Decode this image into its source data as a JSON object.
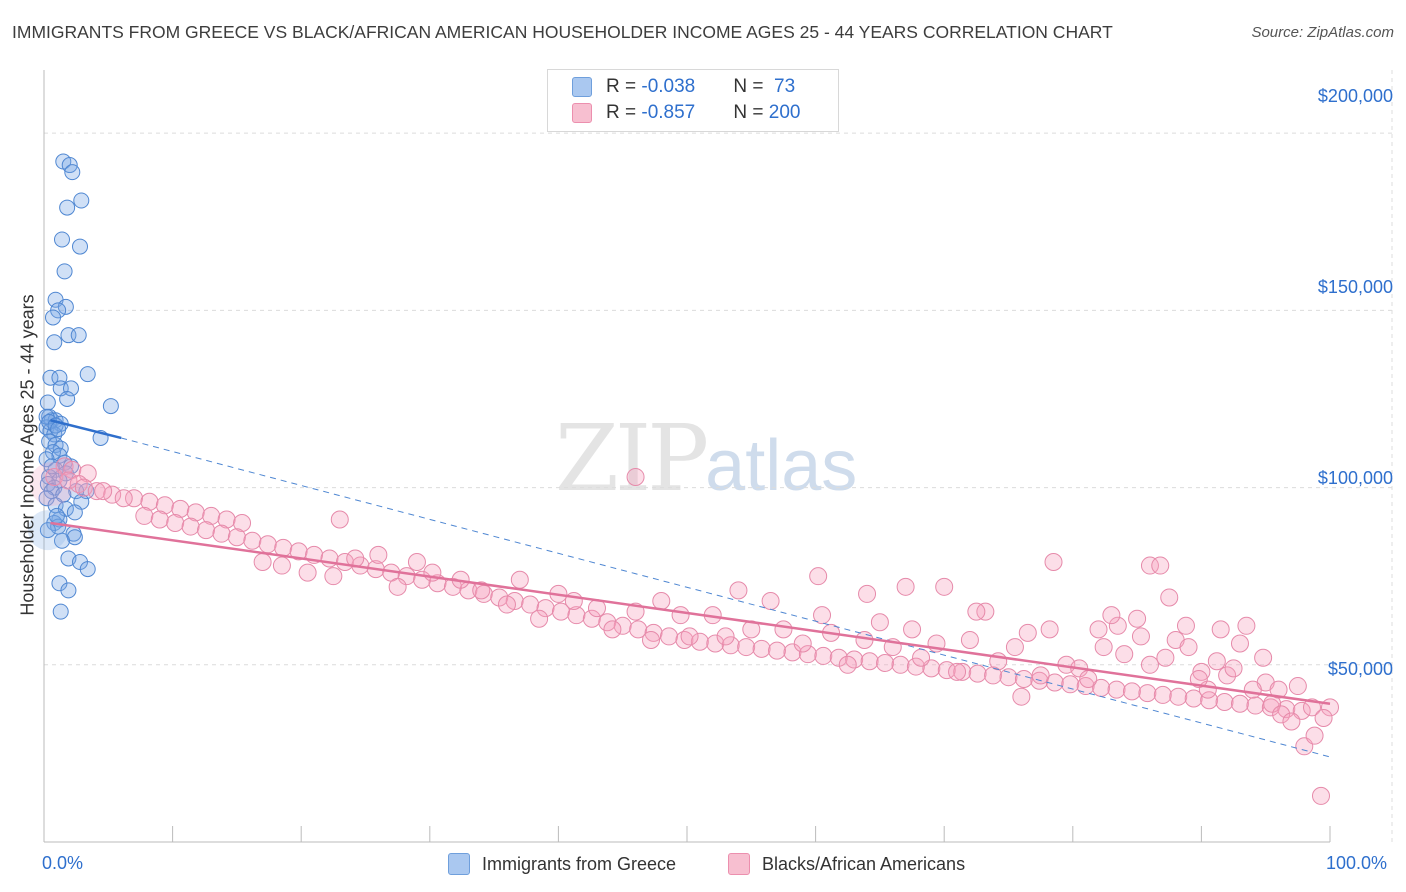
{
  "title": "IMMIGRANTS FROM GREECE VS BLACK/AFRICAN AMERICAN HOUSEHOLDER INCOME AGES 25 - 44 YEARS CORRELATION CHART",
  "source": "Source: ZipAtlas.com",
  "watermark": {
    "zip": "ZIP",
    "atlas": "atlas"
  },
  "legend": {
    "rows": [
      {
        "r_label": "R = ",
        "r_value": "-0.038",
        "n_label": "N = ",
        "n_value": " 73",
        "color": "#aac8f0",
        "border": "#6f9fdc"
      },
      {
        "r_label": "R = ",
        "r_value": "-0.857",
        "n_label": "N = ",
        "n_value": "200",
        "color": "#f7bfd0",
        "border": "#ec8fae"
      }
    ]
  },
  "bottom_legend": [
    {
      "label": "Immigrants from Greece",
      "color": "#aac8f0",
      "border": "#6f9fdc"
    },
    {
      "label": "Blacks/African Americans",
      "color": "#f7bfd0",
      "border": "#ec8fae"
    }
  ],
  "chart_data": {
    "type": "scatter",
    "title": "IMMIGRANTS FROM GREECE VS BLACK/AFRICAN AMERICAN HOUSEHOLDER INCOME AGES 25 - 44 YEARS CORRELATION CHART",
    "xlabel": "",
    "ylabel": "Householder Income Ages 25 - 44 years",
    "xlim": [
      0,
      100
    ],
    "ylim": [
      0,
      215000
    ],
    "x_tick_labels": [
      "0.0%",
      "100.0%"
    ],
    "y_ticks": [
      50000,
      100000,
      150000,
      200000
    ],
    "y_tick_labels": [
      "$50,000",
      "$100,000",
      "$150,000",
      "$200,000"
    ],
    "grid": true,
    "legend_position": "top-center",
    "series": [
      {
        "name": "Immigrants from Greece",
        "color": "#6f9fdc",
        "points": [
          [
            1.5,
            192000
          ],
          [
            2.0,
            191000
          ],
          [
            2.2,
            189000
          ],
          [
            2.9,
            181000
          ],
          [
            1.8,
            179000
          ],
          [
            1.4,
            170000
          ],
          [
            2.8,
            168000
          ],
          [
            1.6,
            161000
          ],
          [
            0.9,
            153000
          ],
          [
            1.7,
            151000
          ],
          [
            1.1,
            150000
          ],
          [
            0.7,
            148000
          ],
          [
            1.9,
            143000
          ],
          [
            2.7,
            143000
          ],
          [
            0.8,
            141000
          ],
          [
            3.4,
            132000
          ],
          [
            0.5,
            131000
          ],
          [
            1.2,
            131000
          ],
          [
            1.3,
            128000
          ],
          [
            2.1,
            128000
          ],
          [
            1.8,
            125000
          ],
          [
            0.3,
            124000
          ],
          [
            5.2,
            123000
          ],
          [
            0.4,
            120000
          ],
          [
            0.6,
            119000
          ],
          [
            0.9,
            119000
          ],
          [
            1.3,
            118000
          ],
          [
            0.2,
            117000
          ],
          [
            0.5,
            116000
          ],
          [
            0.8,
            115000
          ],
          [
            4.4,
            114000
          ],
          [
            0.4,
            113000
          ],
          [
            0.9,
            112000
          ],
          [
            1.3,
            111000
          ],
          [
            0.7,
            110000
          ],
          [
            1.2,
            109000
          ],
          [
            0.2,
            108000
          ],
          [
            1.6,
            107000
          ],
          [
            2.1,
            106000
          ],
          [
            0.9,
            105000
          ],
          [
            1.7,
            104000
          ],
          [
            0.4,
            103000
          ],
          [
            1.2,
            102000
          ],
          [
            0.3,
            101000
          ],
          [
            0.8,
            100000
          ],
          [
            3.3,
            99000
          ],
          [
            2.5,
            99000
          ],
          [
            0.6,
            99000
          ],
          [
            1.5,
            98000
          ],
          [
            0.2,
            97000
          ],
          [
            2.9,
            96000
          ],
          [
            0.9,
            95000
          ],
          [
            1.7,
            94000
          ],
          [
            2.4,
            93000
          ],
          [
            1.2,
            91000
          ],
          [
            0.8,
            90000
          ],
          [
            1.1,
            89000
          ],
          [
            0.3,
            88000
          ],
          [
            2.3,
            87000
          ],
          [
            2.4,
            86000
          ],
          [
            1.4,
            85000
          ],
          [
            1.9,
            80000
          ],
          [
            2.8,
            79000
          ],
          [
            3.4,
            77000
          ],
          [
            1.2,
            73000
          ],
          [
            1.9,
            71000
          ],
          [
            1.3,
            65000
          ],
          [
            0.2,
            120000
          ],
          [
            0.4,
            118500
          ],
          [
            0.9,
            117500
          ],
          [
            1.1,
            116500
          ],
          [
            0.6,
            106000
          ],
          [
            1.0,
            92000
          ]
        ],
        "trend_solid": [
          [
            0.5,
            119000
          ],
          [
            6.0,
            114000
          ]
        ],
        "trend_dashed": [
          [
            6.0,
            114000
          ],
          [
            100,
            24000
          ]
        ]
      },
      {
        "name": "Blacks/African Americans",
        "color": "#ec8fae",
        "points": [
          [
            1.6,
            106000
          ],
          [
            2.2,
            105000
          ],
          [
            3.4,
            104000
          ],
          [
            0.8,
            103000
          ],
          [
            1.9,
            102000
          ],
          [
            2.7,
            101000
          ],
          [
            3.1,
            100000
          ],
          [
            4.1,
            99000
          ],
          [
            5.3,
            98000
          ],
          [
            7.0,
            97000
          ],
          [
            8.2,
            96000
          ],
          [
            9.4,
            95000
          ],
          [
            10.6,
            94000
          ],
          [
            11.8,
            93000
          ],
          [
            13.0,
            92000
          ],
          [
            14.2,
            91000
          ],
          [
            15.4,
            90000
          ],
          [
            4.6,
            99000
          ],
          [
            6.2,
            97000
          ],
          [
            7.8,
            92000
          ],
          [
            9.0,
            91000
          ],
          [
            10.2,
            90000
          ],
          [
            11.4,
            89000
          ],
          [
            12.6,
            88000
          ],
          [
            13.8,
            87000
          ],
          [
            15.0,
            86000
          ],
          [
            16.2,
            85000
          ],
          [
            17.4,
            84000
          ],
          [
            18.6,
            83000
          ],
          [
            19.8,
            82000
          ],
          [
            21.0,
            81000
          ],
          [
            22.2,
            80000
          ],
          [
            23.4,
            79000
          ],
          [
            24.6,
            78000
          ],
          [
            25.8,
            77000
          ],
          [
            27.0,
            76000
          ],
          [
            28.2,
            75000
          ],
          [
            29.4,
            74000
          ],
          [
            30.6,
            73000
          ],
          [
            31.8,
            72000
          ],
          [
            33.0,
            71000
          ],
          [
            34.2,
            70000
          ],
          [
            35.4,
            69000
          ],
          [
            36.6,
            68000
          ],
          [
            37.8,
            67000
          ],
          [
            39.0,
            66000
          ],
          [
            40.2,
            65000
          ],
          [
            41.4,
            64000
          ],
          [
            42.6,
            63000
          ],
          [
            43.8,
            62000
          ],
          [
            45.0,
            61000
          ],
          [
            46.2,
            60000
          ],
          [
            47.4,
            59000
          ],
          [
            48.6,
            58000
          ],
          [
            49.8,
            57000
          ],
          [
            51.0,
            56500
          ],
          [
            52.2,
            56000
          ],
          [
            53.4,
            55500
          ],
          [
            54.6,
            55000
          ],
          [
            55.8,
            54500
          ],
          [
            57.0,
            54000
          ],
          [
            58.2,
            53500
          ],
          [
            59.4,
            53000
          ],
          [
            60.6,
            52500
          ],
          [
            61.8,
            52000
          ],
          [
            63.0,
            51500
          ],
          [
            64.2,
            51000
          ],
          [
            65.4,
            50500
          ],
          [
            66.6,
            50000
          ],
          [
            67.8,
            49500
          ],
          [
            69.0,
            49000
          ],
          [
            70.2,
            48500
          ],
          [
            71.4,
            48000
          ],
          [
            72.6,
            47500
          ],
          [
            73.8,
            47000
          ],
          [
            75.0,
            46500
          ],
          [
            76.2,
            46000
          ],
          [
            77.4,
            45500
          ],
          [
            78.6,
            45000
          ],
          [
            79.8,
            44500
          ],
          [
            81.0,
            44000
          ],
          [
            82.2,
            43500
          ],
          [
            83.4,
            43000
          ],
          [
            84.6,
            42500
          ],
          [
            85.8,
            42000
          ],
          [
            87.0,
            41500
          ],
          [
            88.2,
            41000
          ],
          [
            89.4,
            40500
          ],
          [
            90.6,
            40000
          ],
          [
            91.8,
            39500
          ],
          [
            93.0,
            39000
          ],
          [
            94.2,
            38500
          ],
          [
            95.4,
            38000
          ],
          [
            96.6,
            37500
          ],
          [
            97.8,
            37000
          ],
          [
            98.6,
            38000
          ],
          [
            17.0,
            79000
          ],
          [
            18.5,
            78000
          ],
          [
            20.5,
            76000
          ],
          [
            22.5,
            75000
          ],
          [
            24.2,
            80000
          ],
          [
            26.0,
            81000
          ],
          [
            27.5,
            72000
          ],
          [
            29.0,
            79000
          ],
          [
            30.2,
            76000
          ],
          [
            32.4,
            74000
          ],
          [
            34.0,
            71000
          ],
          [
            36.0,
            67000
          ],
          [
            37.0,
            74000
          ],
          [
            38.5,
            63000
          ],
          [
            40.0,
            70000
          ],
          [
            41.2,
            68000
          ],
          [
            43.0,
            66000
          ],
          [
            44.2,
            60000
          ],
          [
            46.0,
            65000
          ],
          [
            47.2,
            57000
          ],
          [
            48.0,
            68000
          ],
          [
            49.5,
            64000
          ],
          [
            50.2,
            58000
          ],
          [
            52.0,
            64000
          ],
          [
            53.0,
            58000
          ],
          [
            54.0,
            71000
          ],
          [
            55.0,
            60000
          ],
          [
            56.5,
            68000
          ],
          [
            57.5,
            60000
          ],
          [
            59.0,
            56000
          ],
          [
            60.5,
            64000
          ],
          [
            61.2,
            59000
          ],
          [
            62.5,
            50000
          ],
          [
            63.8,
            57000
          ],
          [
            65.0,
            62000
          ],
          [
            66.0,
            55000
          ],
          [
            67.5,
            60000
          ],
          [
            68.2,
            52000
          ],
          [
            69.4,
            56000
          ],
          [
            70.0,
            72000
          ],
          [
            71.0,
            48000
          ],
          [
            72.0,
            57000
          ],
          [
            73.2,
            65000
          ],
          [
            74.2,
            51000
          ],
          [
            75.5,
            55000
          ],
          [
            76.5,
            59000
          ],
          [
            77.5,
            47000
          ],
          [
            78.2,
            60000
          ],
          [
            79.5,
            50000
          ],
          [
            80.5,
            49000
          ],
          [
            81.2,
            46000
          ],
          [
            82.4,
            55000
          ],
          [
            83.5,
            61000
          ],
          [
            84.0,
            53000
          ],
          [
            85.3,
            58000
          ],
          [
            86.0,
            50000
          ],
          [
            87.2,
            52000
          ],
          [
            88.0,
            57000
          ],
          [
            89.0,
            55000
          ],
          [
            90.0,
            48000
          ],
          [
            91.2,
            51000
          ],
          [
            92.0,
            47000
          ],
          [
            93.5,
            61000
          ],
          [
            94.8,
            52000
          ],
          [
            95.5,
            39000
          ],
          [
            96.2,
            36000
          ],
          [
            97.0,
            34000
          ],
          [
            98.0,
            27000
          ],
          [
            98.8,
            30000
          ],
          [
            99.3,
            13000
          ],
          [
            100.0,
            38000
          ],
          [
            99.5,
            35000
          ],
          [
            46.0,
            103000
          ],
          [
            23.0,
            91000
          ],
          [
            78.5,
            79000
          ],
          [
            86.0,
            78000
          ],
          [
            86.8,
            78000
          ],
          [
            87.5,
            69000
          ],
          [
            88.8,
            61000
          ],
          [
            91.5,
            60000
          ],
          [
            60.2,
            75000
          ],
          [
            64.0,
            70000
          ],
          [
            67.0,
            72000
          ],
          [
            72.5,
            65000
          ],
          [
            82.0,
            60000
          ],
          [
            83.0,
            64000
          ],
          [
            85.0,
            63000
          ],
          [
            93.0,
            56000
          ],
          [
            95.0,
            45000
          ],
          [
            96.0,
            43000
          ],
          [
            97.5,
            44000
          ],
          [
            90.5,
            43000
          ],
          [
            89.8,
            46000
          ],
          [
            92.5,
            49000
          ],
          [
            94.0,
            43000
          ],
          [
            76.0,
            41000
          ]
        ],
        "trend": [
          [
            0.5,
            90000
          ],
          [
            100,
            39000
          ]
        ]
      }
    ]
  }
}
